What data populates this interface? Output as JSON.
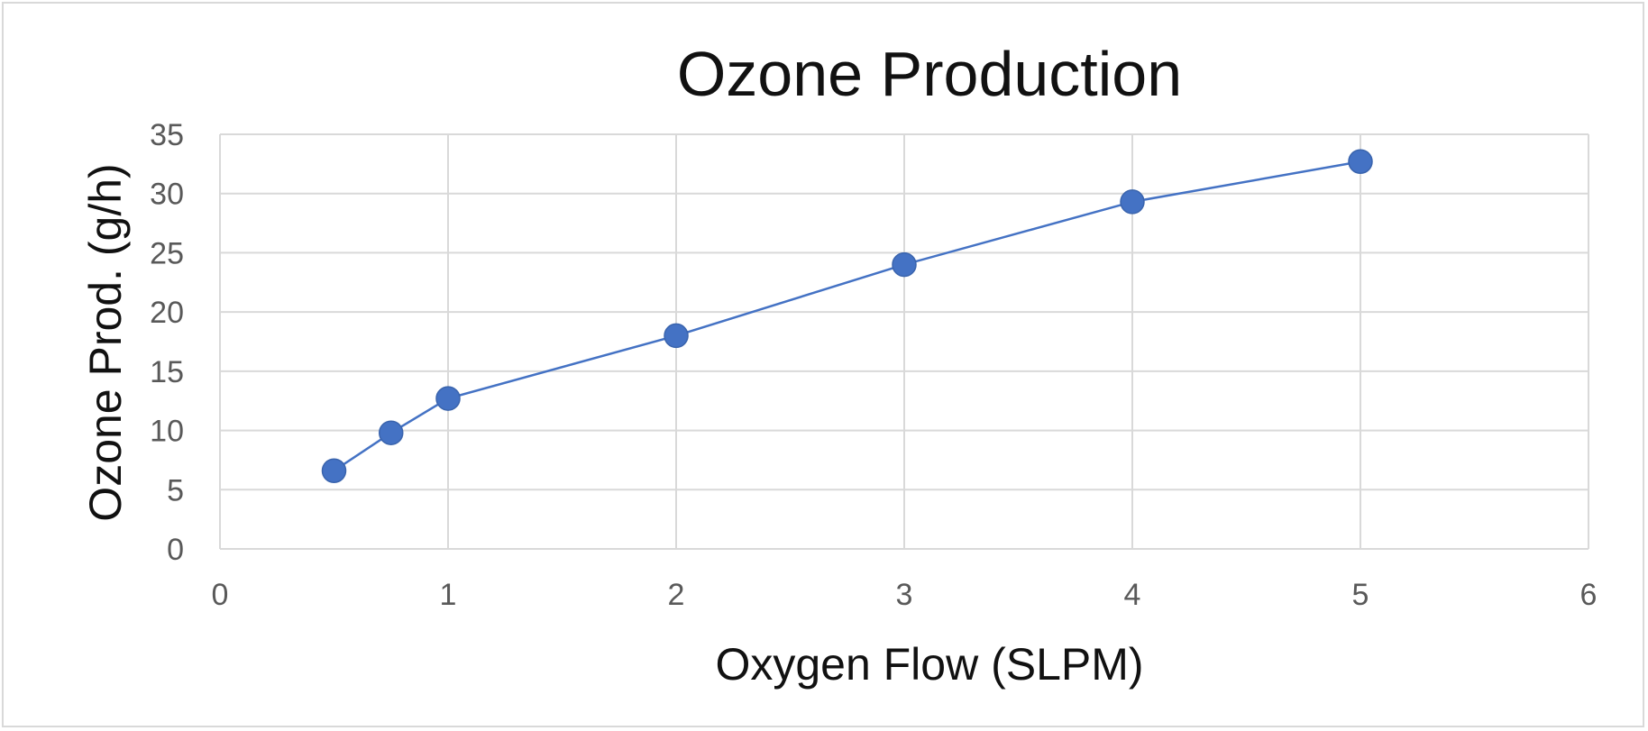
{
  "chart_data": {
    "type": "scatter",
    "title": "Ozone Production",
    "xlabel": "Oxygen Flow (SLPM)",
    "ylabel": "Ozone Prod. (g/h)",
    "xlim": [
      0,
      6
    ],
    "ylim": [
      0,
      35
    ],
    "xticks": [
      0,
      1,
      2,
      3,
      4,
      5,
      6
    ],
    "yticks": [
      0,
      5,
      10,
      15,
      20,
      25,
      30,
      35
    ],
    "grid": true,
    "legend": "none",
    "series": [
      {
        "color": "#4472C4",
        "marker": "circle",
        "line": true,
        "x": [
          0.5,
          0.75,
          1,
          2,
          3,
          4,
          5
        ],
        "y": [
          6.6,
          9.8,
          12.7,
          18,
          24,
          29.3,
          32.7
        ]
      }
    ]
  }
}
